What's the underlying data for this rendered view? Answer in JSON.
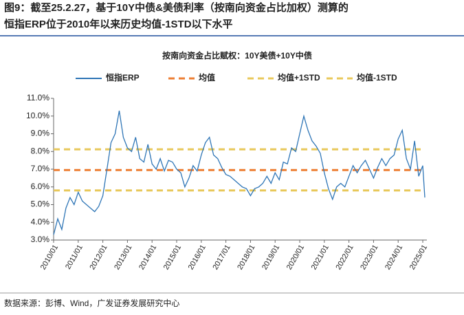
{
  "header": {
    "title_line1": "图9：截至25.2.27，基于10Y中债&美债利率（按南向资金占比加权）测算的",
    "title_line2": "恒指ERP位于2010年以来历史均值-1STD以下水平"
  },
  "chart_data": {
    "type": "line",
    "title": "按南向资金占比赋权：10Y美债+10Y中债",
    "x": [
      "2010/01",
      "2010/03",
      "2010/05",
      "2010/07",
      "2010/09",
      "2010/11",
      "2011/01",
      "2011/03",
      "2011/05",
      "2011/07",
      "2011/09",
      "2011/11",
      "2012/01",
      "2012/03",
      "2012/05",
      "2012/07",
      "2012/09",
      "2012/11",
      "2013/01",
      "2013/03",
      "2013/05",
      "2013/07",
      "2013/09",
      "2013/11",
      "2014/01",
      "2014/03",
      "2014/05",
      "2014/07",
      "2014/09",
      "2014/11",
      "2015/01",
      "2015/03",
      "2015/05",
      "2015/07",
      "2015/09",
      "2015/11",
      "2016/01",
      "2016/03",
      "2016/05",
      "2016/07",
      "2016/09",
      "2016/11",
      "2017/01",
      "2017/03",
      "2017/05",
      "2017/07",
      "2017/09",
      "2017/11",
      "2018/01",
      "2018/03",
      "2018/05",
      "2018/07",
      "2018/09",
      "2018/11",
      "2019/01",
      "2019/03",
      "2019/05",
      "2019/07",
      "2019/09",
      "2019/11",
      "2020/01",
      "2020/03",
      "2020/05",
      "2020/07",
      "2020/09",
      "2020/11",
      "2021/01",
      "2021/03",
      "2021/05",
      "2021/07",
      "2021/09",
      "2021/11",
      "2022/01",
      "2022/03",
      "2022/05",
      "2022/07",
      "2022/09",
      "2022/11",
      "2023/01",
      "2023/03",
      "2023/05",
      "2023/07",
      "2023/09",
      "2023/11",
      "2024/01",
      "2024/03",
      "2024/05",
      "2024/07",
      "2024/09",
      "2024/11",
      "2025/01",
      "2025/02"
    ],
    "series": [
      {
        "name": "恒指ERP",
        "color": "#2e75b6",
        "values": [
          3.3,
          4.2,
          3.6,
          4.8,
          5.4,
          5.0,
          5.7,
          5.2,
          5.0,
          4.8,
          4.6,
          4.9,
          5.5,
          7.0,
          8.5,
          9.0,
          10.3,
          8.8,
          8.2,
          8.0,
          8.8,
          7.6,
          7.4,
          8.4,
          7.3,
          7.0,
          7.6,
          6.9,
          7.5,
          7.4,
          7.0,
          6.8,
          6.0,
          6.5,
          7.2,
          6.9,
          7.8,
          8.5,
          8.8,
          7.8,
          7.6,
          7.1,
          6.7,
          6.6,
          6.4,
          6.2,
          6.0,
          5.9,
          5.5,
          5.9,
          6.0,
          6.2,
          6.6,
          6.2,
          6.8,
          6.4,
          7.4,
          7.3,
          8.2,
          8.0,
          9.0,
          10.0,
          9.2,
          8.6,
          8.3,
          7.9,
          6.8,
          5.9,
          5.3,
          6.0,
          6.2,
          6.0,
          6.6,
          7.2,
          6.8,
          7.2,
          7.5,
          7.0,
          6.5,
          7.1,
          7.6,
          7.2,
          7.6,
          7.8,
          8.7,
          9.2,
          7.6,
          7.0,
          8.6,
          6.6,
          7.2,
          5.4
        ]
      }
    ],
    "reference_lines": [
      {
        "name": "均值",
        "color": "#ed7d31",
        "value": 6.95
      },
      {
        "name": "均值+1STD",
        "color": "#e8c85a",
        "value": 8.12
      },
      {
        "name": "均值-1STD",
        "color": "#e8c85a",
        "value": 5.8
      }
    ],
    "xlim": [
      "2010/01",
      "2025/03"
    ],
    "xticks": [
      "2010/01",
      "2011/01",
      "2012/01",
      "2013/01",
      "2014/01",
      "2015/01",
      "2016/01",
      "2017/01",
      "2018/01",
      "2019/01",
      "2020/01",
      "2021/01",
      "2022/01",
      "2023/01",
      "2024/01",
      "2025/01"
    ],
    "ylim": [
      3,
      11
    ],
    "yticks": [
      {
        "value": 3,
        "label": "3.0%"
      },
      {
        "value": 4,
        "label": "4.0%"
      },
      {
        "value": 5,
        "label": "5.0%"
      },
      {
        "value": 6,
        "label": "6.0%"
      },
      {
        "value": 7,
        "label": "7.0%"
      },
      {
        "value": 8,
        "label": "8.0%"
      },
      {
        "value": 9,
        "label": "9.0%"
      },
      {
        "value": 10,
        "label": "10.0%"
      },
      {
        "value": 11,
        "label": "11.0%"
      }
    ],
    "legend": "top"
  },
  "footer": {
    "source": "数据来源：彭博、Wind，广发证券发展研究中心"
  }
}
